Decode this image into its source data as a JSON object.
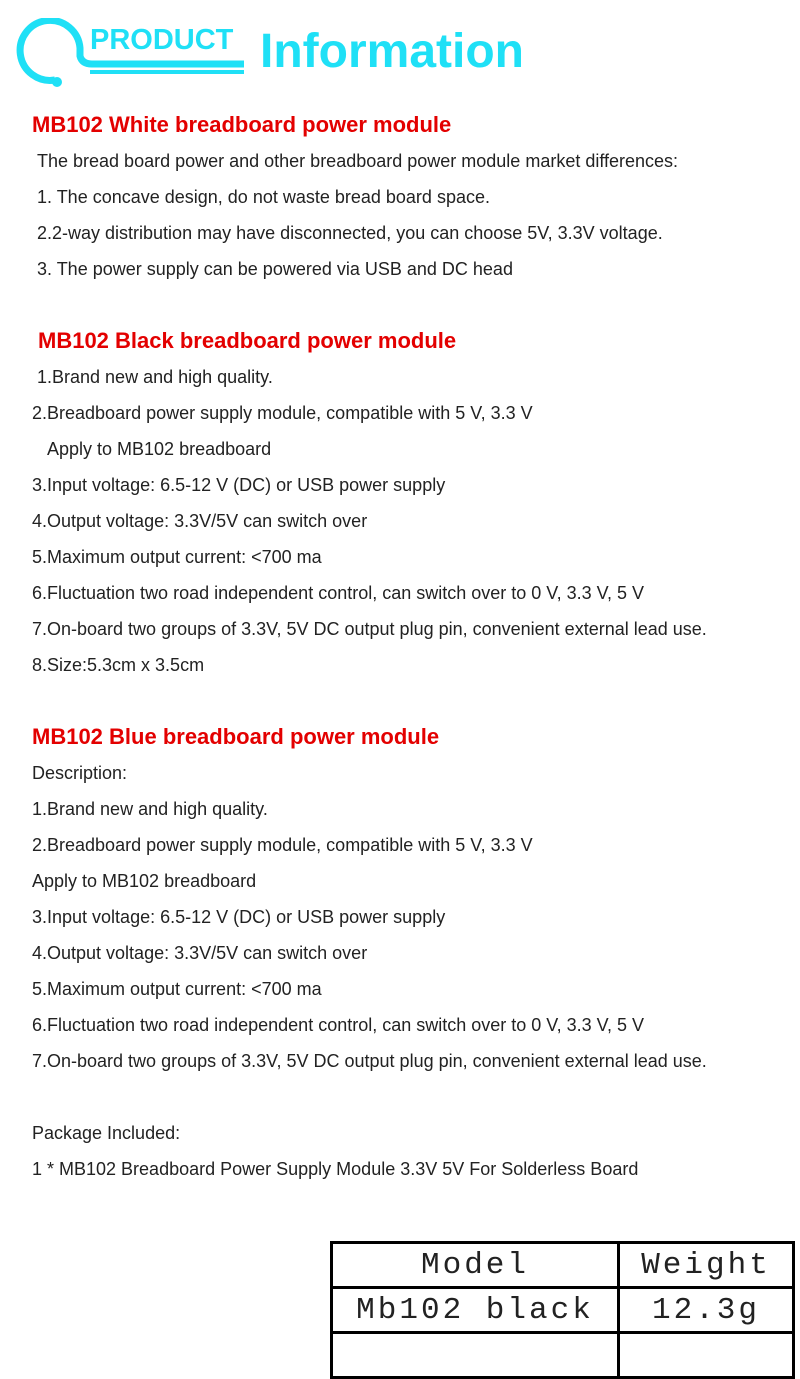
{
  "header": {
    "badge": "PRODUCT",
    "title": "Information",
    "accent_color": "#1fe0f6"
  },
  "white": {
    "title": "MB102 White breadboard power module",
    "lines": [
      "The bread board power and other breadboard power module market differences:",
      "1. The concave design, do not waste bread board space.",
      "2.2-way distribution may have disconnected, you can choose 5V, 3.3V voltage.",
      "3. The power supply can be powered via USB and DC head"
    ]
  },
  "black": {
    "title": "MB102 Black  breadboard power module",
    "lines": [
      "1.Brand new and high quality.",
      "2.Breadboard power supply module, compatible with 5 V, 3.3 V",
      "Apply to MB102 breadboard",
      "3.Input voltage: 6.5-12 V (DC) or USB power supply",
      "4.Output voltage: 3.3V/5V can switch over",
      "5.Maximum output current: <700 ma",
      "6.Fluctuation two road independent control, can switch over to 0 V, 3.3 V, 5 V",
      "7.On-board two groups of 3.3V, 5V DC output plug pin, convenient external lead use.",
      "8.Size:5.3cm x 3.5cm"
    ]
  },
  "blue": {
    "title": "MB102 Blue  breadboard power module",
    "lines": [
      "Description:",
      "1.Brand new and high quality.",
      "2.Breadboard power supply module, compatible with 5 V, 3.3 V",
      "Apply to MB102 breadboard",
      "3.Input voltage: 6.5-12 V (DC) or USB power supply",
      "4.Output voltage: 3.3V/5V can switch over",
      "5.Maximum output current: <700 ma",
      "6.Fluctuation two road independent control, can switch over to 0 V, 3.3 V, 5 V",
      "7.On-board two groups of 3.3V, 5V DC output plug pin, convenient external lead use."
    ]
  },
  "package": {
    "title": "Package Included:",
    "item": "1 * MB102 Breadboard Power Supply Module 3.3V 5V For Solderless Board"
  },
  "table": {
    "headers": [
      "Model",
      "Weight"
    ],
    "rows": [
      [
        "Mb102 black",
        "12.3g"
      ],
      [
        "",
        ""
      ]
    ]
  },
  "heading_color": "#e30000"
}
